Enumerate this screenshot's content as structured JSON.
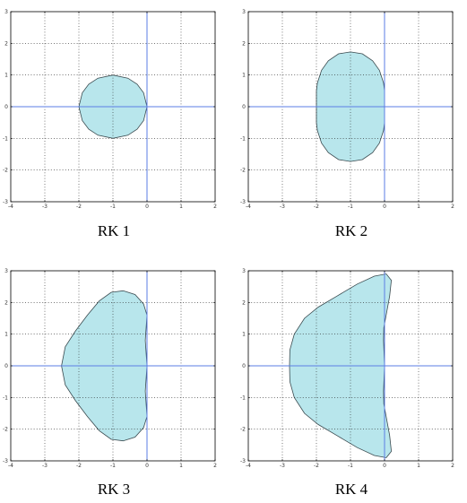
{
  "chart_data": [
    {
      "type": "area",
      "title": "RK 1",
      "xlim": [
        -4,
        2
      ],
      "ylim": [
        -3,
        3
      ],
      "x_ticks": [
        -4,
        -3,
        -2,
        -1,
        0,
        1,
        2
      ],
      "y_ticks": [
        -3,
        -2,
        -1,
        0,
        1,
        2,
        3
      ],
      "grid": true,
      "fill_color": "#b8e6ec",
      "axis_color": "#5b7ee5",
      "boundary": [
        [
          0,
          0
        ],
        [
          -0.1,
          0.44
        ],
        [
          -0.29,
          0.71
        ],
        [
          -0.56,
          0.9
        ],
        [
          -1,
          1
        ],
        [
          -1.44,
          0.9
        ],
        [
          -1.71,
          0.71
        ],
        [
          -1.9,
          0.44
        ],
        [
          -2,
          0
        ],
        [
          -1.9,
          -0.44
        ],
        [
          -1.71,
          -0.71
        ],
        [
          -1.44,
          -0.9
        ],
        [
          -1,
          -1
        ],
        [
          -0.56,
          -0.9
        ],
        [
          -0.29,
          -0.71
        ],
        [
          -0.1,
          -0.44
        ],
        [
          0,
          0
        ]
      ]
    },
    {
      "type": "area",
      "title": "RK 2",
      "xlim": [
        -4,
        2
      ],
      "ylim": [
        -3,
        3
      ],
      "x_ticks": [
        -4,
        -3,
        -2,
        -1,
        0,
        1,
        2
      ],
      "y_ticks": [
        -3,
        -2,
        -1,
        0,
        1,
        2,
        3
      ],
      "grid": true,
      "fill_color": "#b8e6ec",
      "axis_color": "#5b7ee5",
      "boundary": [
        [
          0,
          0
        ],
        [
          0,
          0.5
        ],
        [
          -0.03,
          0.75
        ],
        [
          -0.15,
          1.15
        ],
        [
          -0.35,
          1.45
        ],
        [
          -0.65,
          1.67
        ],
        [
          -1,
          1.73
        ],
        [
          -1.35,
          1.67
        ],
        [
          -1.65,
          1.45
        ],
        [
          -1.85,
          1.15
        ],
        [
          -1.97,
          0.75
        ],
        [
          -2,
          0.5
        ],
        [
          -2,
          0
        ],
        [
          -2,
          -0.5
        ],
        [
          -1.97,
          -0.75
        ],
        [
          -1.85,
          -1.15
        ],
        [
          -1.65,
          -1.45
        ],
        [
          -1.35,
          -1.67
        ],
        [
          -1,
          -1.73
        ],
        [
          -0.65,
          -1.67
        ],
        [
          -0.35,
          -1.45
        ],
        [
          -0.15,
          -1.15
        ],
        [
          -0.03,
          -0.75
        ],
        [
          0,
          -0.5
        ],
        [
          0,
          0
        ]
      ]
    },
    {
      "type": "area",
      "title": "RK 3",
      "xlim": [
        -4,
        2
      ],
      "ylim": [
        -3,
        3
      ],
      "x_ticks": [
        -4,
        -3,
        -2,
        -1,
        0,
        1,
        2
      ],
      "y_ticks": [
        -3,
        -2,
        -1,
        0,
        1,
        2,
        3
      ],
      "grid": true,
      "fill_color": "#b8e6ec",
      "axis_color": "#5b7ee5",
      "boundary": [
        [
          0,
          0
        ],
        [
          -0.05,
          0.8
        ],
        [
          0,
          1.6
        ],
        [
          -0.1,
          1.95
        ],
        [
          -0.35,
          2.25
        ],
        [
          -0.7,
          2.37
        ],
        [
          -1.05,
          2.32
        ],
        [
          -1.4,
          2.05
        ],
        [
          -1.75,
          1.6
        ],
        [
          -2.1,
          1.1
        ],
        [
          -2.4,
          0.6
        ],
        [
          -2.51,
          0
        ],
        [
          -2.4,
          -0.6
        ],
        [
          -2.1,
          -1.1
        ],
        [
          -1.75,
          -1.6
        ],
        [
          -1.4,
          -2.05
        ],
        [
          -1.05,
          -2.32
        ],
        [
          -0.7,
          -2.37
        ],
        [
          -0.35,
          -2.25
        ],
        [
          -0.1,
          -1.95
        ],
        [
          0,
          -1.6
        ],
        [
          -0.05,
          -0.8
        ],
        [
          0,
          0
        ]
      ]
    },
    {
      "type": "area",
      "title": "RK 4",
      "xlim": [
        -4,
        2
      ],
      "ylim": [
        -3,
        3
      ],
      "x_ticks": [
        -4,
        -3,
        -2,
        -1,
        0,
        1,
        2
      ],
      "y_ticks": [
        -3,
        -2,
        -1,
        0,
        1,
        2,
        3
      ],
      "grid": true,
      "fill_color": "#b8e6ec",
      "axis_color": "#5b7ee5",
      "boundary": [
        [
          0,
          0
        ],
        [
          -0.03,
          0.8
        ],
        [
          -0.02,
          1.2
        ],
        [
          0.15,
          2.2
        ],
        [
          0.2,
          2.7
        ],
        [
          0.05,
          2.9
        ],
        [
          -0.3,
          2.83
        ],
        [
          -0.8,
          2.58
        ],
        [
          -1.4,
          2.2
        ],
        [
          -1.95,
          1.85
        ],
        [
          -2.35,
          1.5
        ],
        [
          -2.65,
          1.0
        ],
        [
          -2.78,
          0.5
        ],
        [
          -2.79,
          0
        ],
        [
          -2.78,
          -0.5
        ],
        [
          -2.65,
          -1.0
        ],
        [
          -2.35,
          -1.5
        ],
        [
          -1.95,
          -1.85
        ],
        [
          -1.4,
          -2.2
        ],
        [
          -0.8,
          -2.58
        ],
        [
          -0.3,
          -2.83
        ],
        [
          0.05,
          -2.9
        ],
        [
          0.2,
          -2.7
        ],
        [
          0.15,
          -2.2
        ],
        [
          -0.02,
          -1.2
        ],
        [
          -0.03,
          -0.8
        ],
        [
          0,
          0
        ]
      ]
    }
  ]
}
